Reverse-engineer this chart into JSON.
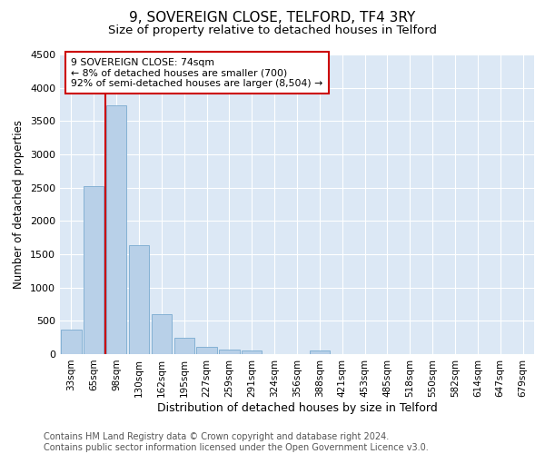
{
  "title": "9, SOVEREIGN CLOSE, TELFORD, TF4 3RY",
  "subtitle": "Size of property relative to detached houses in Telford",
  "xlabel": "Distribution of detached houses by size in Telford",
  "ylabel": "Number of detached properties",
  "categories": [
    "33sqm",
    "65sqm",
    "98sqm",
    "130sqm",
    "162sqm",
    "195sqm",
    "227sqm",
    "259sqm",
    "291sqm",
    "324sqm",
    "356sqm",
    "388sqm",
    "421sqm",
    "453sqm",
    "485sqm",
    "518sqm",
    "550sqm",
    "582sqm",
    "614sqm",
    "647sqm",
    "679sqm"
  ],
  "values": [
    375,
    2520,
    3730,
    1640,
    600,
    240,
    110,
    65,
    50,
    0,
    0,
    60,
    0,
    0,
    0,
    0,
    0,
    0,
    0,
    0,
    0
  ],
  "bar_color": "#b8d0e8",
  "bar_edge_color": "#7aaad0",
  "vline_color": "#cc0000",
  "vline_pos": 1.5,
  "annotation_text": "9 SOVEREIGN CLOSE: 74sqm\n← 8% of detached houses are smaller (700)\n92% of semi-detached houses are larger (8,504) →",
  "annotation_box_color": "#ffffff",
  "annotation_box_edge": "#cc0000",
  "ylim": [
    0,
    4500
  ],
  "yticks": [
    0,
    500,
    1000,
    1500,
    2000,
    2500,
    3000,
    3500,
    4000,
    4500
  ],
  "bg_color": "#dce8f5",
  "grid_color": "#ffffff",
  "footer": "Contains HM Land Registry data © Crown copyright and database right 2024.\nContains public sector information licensed under the Open Government Licence v3.0.",
  "title_fontsize": 11,
  "subtitle_fontsize": 9.5,
  "xlabel_fontsize": 9,
  "ylabel_fontsize": 8.5,
  "footer_fontsize": 7,
  "tick_fontsize": 7.5,
  "ytick_fontsize": 8
}
